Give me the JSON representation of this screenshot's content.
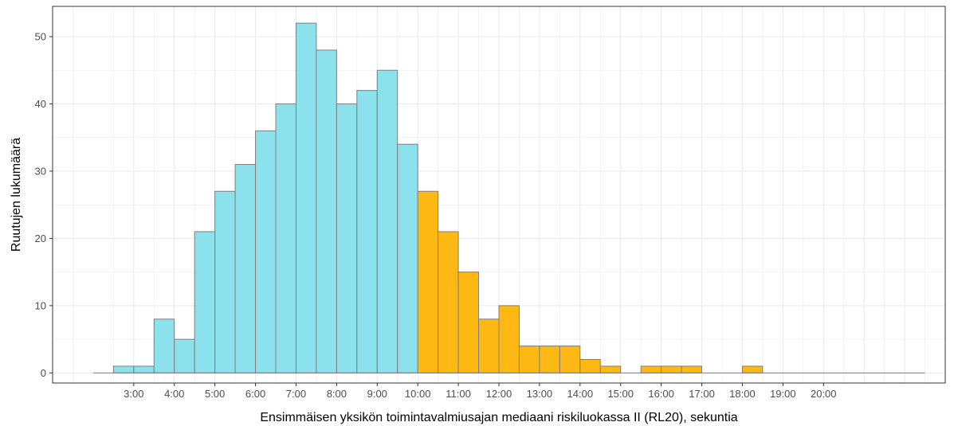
{
  "chart_data": {
    "type": "bar",
    "title": "",
    "xlabel": "Ensimmäisen yksikön toimintavalmiusajan mediaani riskiluokassa II (RL20), sekuntia",
    "ylabel": "Ruutujen lukumäärä",
    "xlim": [
      60,
      1380
    ],
    "ylim": [
      -1.5,
      54.5
    ],
    "grid": true,
    "legend": "none",
    "threshold_seconds": 600,
    "colors": {
      "below_threshold": "#8BE1EC",
      "above_threshold": "#FDB813",
      "bar_outline": "#7f7f7f",
      "grid": "#ebebeb",
      "panel_border": "#333333"
    },
    "bin_width_seconds": 30,
    "bins": [
      {
        "start": 150,
        "count": 1
      },
      {
        "start": 180,
        "count": 1
      },
      {
        "start": 210,
        "count": 8
      },
      {
        "start": 240,
        "count": 5
      },
      {
        "start": 270,
        "count": 21
      },
      {
        "start": 300,
        "count": 27
      },
      {
        "start": 330,
        "count": 31
      },
      {
        "start": 360,
        "count": 36
      },
      {
        "start": 390,
        "count": 40
      },
      {
        "start": 420,
        "count": 52
      },
      {
        "start": 450,
        "count": 48
      },
      {
        "start": 480,
        "count": 40
      },
      {
        "start": 510,
        "count": 42
      },
      {
        "start": 540,
        "count": 45
      },
      {
        "start": 570,
        "count": 34
      },
      {
        "start": 600,
        "count": 27
      },
      {
        "start": 630,
        "count": 21
      },
      {
        "start": 660,
        "count": 15
      },
      {
        "start": 690,
        "count": 8
      },
      {
        "start": 720,
        "count": 10
      },
      {
        "start": 750,
        "count": 4
      },
      {
        "start": 780,
        "count": 4
      },
      {
        "start": 810,
        "count": 4
      },
      {
        "start": 840,
        "count": 2
      },
      {
        "start": 870,
        "count": 1
      },
      {
        "start": 900,
        "count": 0
      },
      {
        "start": 930,
        "count": 1
      },
      {
        "start": 960,
        "count": 1
      },
      {
        "start": 990,
        "count": 1
      },
      {
        "start": 1020,
        "count": 0
      },
      {
        "start": 1050,
        "count": 0
      },
      {
        "start": 1080,
        "count": 1
      }
    ],
    "baseline_range": [
      120,
      1350
    ],
    "x_ticks": [
      {
        "value": 180,
        "label": "3:00"
      },
      {
        "value": 240,
        "label": "4:00"
      },
      {
        "value": 300,
        "label": "5:00"
      },
      {
        "value": 360,
        "label": "6:00"
      },
      {
        "value": 420,
        "label": "7:00"
      },
      {
        "value": 480,
        "label": "8:00"
      },
      {
        "value": 540,
        "label": "9:00"
      },
      {
        "value": 600,
        "label": "10:00"
      },
      {
        "value": 660,
        "label": "11:00"
      },
      {
        "value": 720,
        "label": "12:00"
      },
      {
        "value": 780,
        "label": "13:00"
      },
      {
        "value": 840,
        "label": "14:00"
      },
      {
        "value": 900,
        "label": "15:00"
      },
      {
        "value": 960,
        "label": "16:00"
      },
      {
        "value": 1020,
        "label": "17:00"
      },
      {
        "value": 1080,
        "label": "18:00"
      },
      {
        "value": 1140,
        "label": "19:00"
      },
      {
        "value": 1200,
        "label": "20:00"
      }
    ],
    "y_ticks": [
      {
        "value": 0,
        "label": "0"
      },
      {
        "value": 10,
        "label": "10"
      },
      {
        "value": 20,
        "label": "20"
      },
      {
        "value": 30,
        "label": "30"
      },
      {
        "value": 40,
        "label": "40"
      },
      {
        "value": 50,
        "label": "50"
      }
    ]
  }
}
